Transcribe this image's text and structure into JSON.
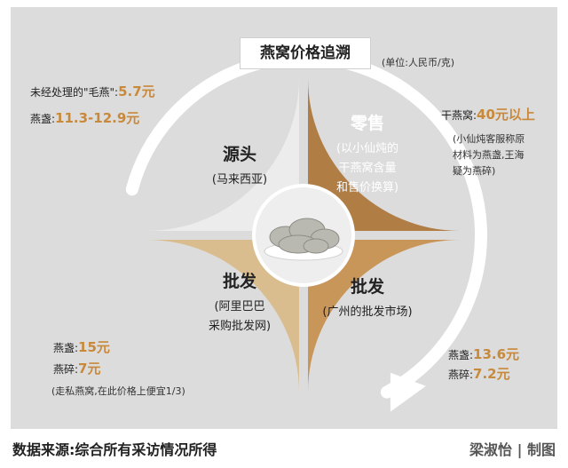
{
  "header": {
    "title": "燕窝价格追溯",
    "unit": "(单位:人民币/克)"
  },
  "colors": {
    "source": "#ececec",
    "retail": "#b07d45",
    "wholesale_guangzhou": "#c9965a",
    "wholesale_alibaba": "#d9bd8f",
    "price": "#c8893a",
    "arrow": "#ffffff"
  },
  "chart_data": {
    "type": "pie",
    "segments": [
      {
        "id": "source",
        "title": "源头",
        "sub": [
          "(马来西亚)"
        ]
      },
      {
        "id": "retail",
        "title": "零售",
        "sub": [
          "(以小仙炖的",
          "干燕窝含量",
          "和售价换算)"
        ]
      },
      {
        "id": "wholesale_guangzhou",
        "title": "批发",
        "sub": [
          "(广州的批发市场)"
        ]
      },
      {
        "id": "wholesale_alibaba",
        "title": "批发",
        "sub": [
          "(阿里巴巴",
          "采购批发网)"
        ]
      }
    ],
    "prices": {
      "source": [
        {
          "label": "未经处理的\"毛燕\":",
          "value": "5.7元"
        },
        {
          "label": "燕盏:",
          "value": "11.3-12.9元"
        }
      ],
      "retail": [
        {
          "label": "干燕窝:",
          "value": "40元以上"
        }
      ],
      "wholesale_guangzhou": [
        {
          "label": "燕盏:",
          "value": "13.6元"
        },
        {
          "label": "燕碎:",
          "value": "7.2元"
        }
      ],
      "wholesale_alibaba": [
        {
          "label": "燕盏:",
          "value": "15元"
        },
        {
          "label": "燕碎:",
          "value": "7元"
        }
      ]
    },
    "notes": {
      "retail": [
        "(小仙炖客服称原",
        "材料为燕盏,王海",
        "疑为燕碎)"
      ],
      "alibaba": "(走私燕窝,在此价格上便宜1/3)"
    }
  },
  "footer": {
    "source": "数据来源:综合所有采访情况所得",
    "credit": "梁淑怡 | 制图"
  }
}
